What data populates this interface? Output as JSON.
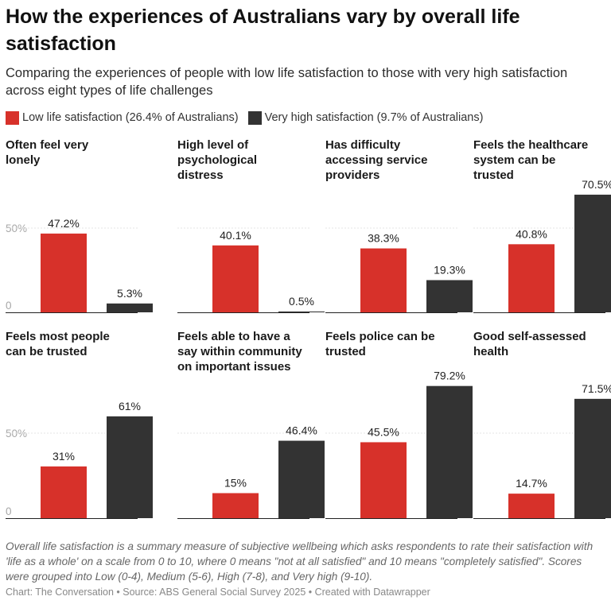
{
  "title": "How the experiences of Australians vary by overall life satisfaction",
  "subtitle": "Comparing the experiences of people with low life satisfaction to those with very high satisfaction across eight types of life challenges",
  "legend": [
    {
      "label": "Low life satisfaction (26.4% of Australians)",
      "color": "#d7312a"
    },
    {
      "label": "Very high satisfaction (9.7% of Australians)",
      "color": "#333333"
    }
  ],
  "chart_data": {
    "type": "bar",
    "layout": "small-multiples",
    "series_names": [
      "Low life satisfaction (26.4% of Australians)",
      "Very high satisfaction (9.7% of Australians)"
    ],
    "colors": [
      "#d7312a",
      "#333333"
    ],
    "axis_ticks": [
      "50%",
      "0"
    ],
    "ylim": [
      0,
      100
    ],
    "panels": [
      {
        "title": "Often feel very lonely",
        "values": [
          47.2,
          5.3
        ],
        "labels": [
          "47.2%",
          "5.3%"
        ]
      },
      {
        "title": "High level of psychological distress",
        "values": [
          40.1,
          0.5
        ],
        "labels": [
          "40.1%",
          "0.5%"
        ]
      },
      {
        "title": "Has difficulty accessing service providers",
        "values": [
          38.3,
          19.3
        ],
        "labels": [
          "38.3%",
          "19.3%"
        ]
      },
      {
        "title": "Feels the healthcare system can be trusted",
        "values": [
          40.8,
          70.5
        ],
        "labels": [
          "40.8%",
          "70.5%"
        ]
      },
      {
        "title": "Feels most people can be trusted",
        "values": [
          31,
          61
        ],
        "labels": [
          "31%",
          "61%"
        ]
      },
      {
        "title": "Feels able to have a say within community on important issues",
        "values": [
          15,
          46.4
        ],
        "labels": [
          "15%",
          "46.4%"
        ]
      },
      {
        "title": "Feels police can be trusted",
        "values": [
          45.5,
          79.2
        ],
        "labels": [
          "45.5%",
          "79.2%"
        ]
      },
      {
        "title": "Good self-assessed health",
        "values": [
          14.7,
          71.5
        ],
        "labels": [
          "14.7%",
          "71.5%"
        ]
      }
    ]
  },
  "note": "Overall life satisfaction is a summary measure of subjective wellbeing which asks respondents to rate their satisfaction with 'life as a whole' on a scale from 0 to 10, where 0 means \"not at all satisfied\" and 10 means \"completely satisfied\". Scores were grouped into Low (0-4), Medium (5-6), High (7-8), and Very high (9-10).",
  "credit": "Chart: The Conversation • Source: ABS General Social Survey 2025 • Created with Datawrapper"
}
